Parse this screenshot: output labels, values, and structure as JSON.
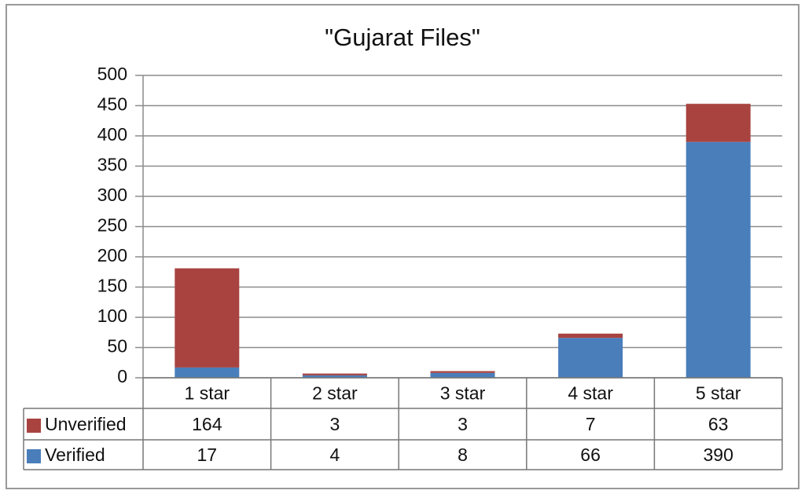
{
  "chart_data": {
    "type": "stacked-bar",
    "title": "\"Gujarat Files\"",
    "categories": [
      "1 star",
      "2 star",
      "3 star",
      "4 star",
      "5 star"
    ],
    "series": [
      {
        "name": "Unverified",
        "color": "#a84340",
        "values": [
          164,
          3,
          3,
          7,
          63
        ]
      },
      {
        "name": "Verified",
        "color": "#4a7ebb",
        "values": [
          17,
          4,
          8,
          66,
          390
        ]
      }
    ],
    "ylim": [
      0,
      500
    ],
    "yticks": [
      0,
      50,
      100,
      150,
      200,
      250,
      300,
      350,
      400,
      450,
      500
    ],
    "grid": true
  }
}
